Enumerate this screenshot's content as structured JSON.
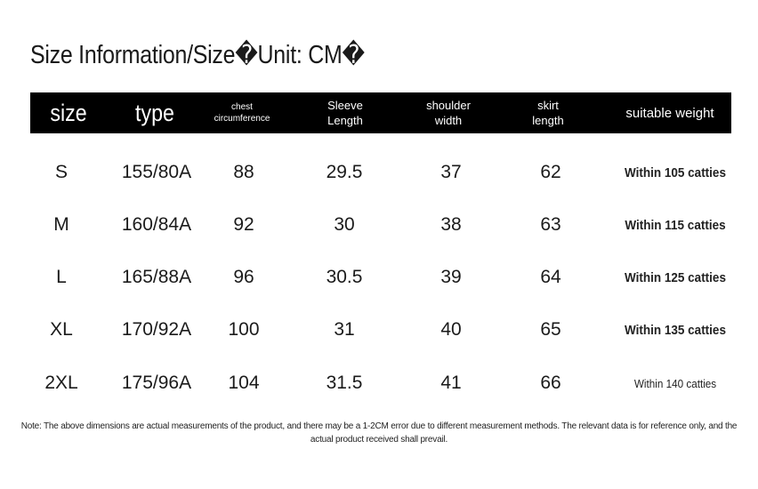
{
  "title": "Size Information/Size�Unit: CM�",
  "headers": {
    "size": "size",
    "type": "type",
    "chest": "chest\ncircumference",
    "sleeve": "Sleeve\nLength",
    "shoulder": "shoulder\nwidth",
    "skirt": "skirt\nlength",
    "weight": "suitable weight"
  },
  "rows": [
    {
      "size": "S",
      "type": "155/80A",
      "chest": "88",
      "sleeve": "29.5",
      "shoulder": "37",
      "skirt": "62",
      "weight": "Within 105 catties"
    },
    {
      "size": "M",
      "type": "160/84A",
      "chest": "92",
      "sleeve": "30",
      "shoulder": "38",
      "skirt": "63",
      "weight": "Within 115 catties"
    },
    {
      "size": "L",
      "type": "165/88A",
      "chest": "96",
      "sleeve": "30.5",
      "shoulder": "39",
      "skirt": "64",
      "weight": "Within 125 catties"
    },
    {
      "size": "XL",
      "type": "170/92A",
      "chest": "100",
      "sleeve": "31",
      "shoulder": "40",
      "skirt": "65",
      "weight": "Within 135 catties"
    },
    {
      "size": "2XL",
      "type": "175/96A",
      "chest": "104",
      "sleeve": "31.5",
      "shoulder": "41",
      "skirt": "66",
      "weight": "Within 140 catties"
    }
  ],
  "note": "Note: The above dimensions are actual measurements of the product, and there may be a 1-2CM error due to different measurement methods. The relevant data is for reference only, and the actual product received shall prevail."
}
